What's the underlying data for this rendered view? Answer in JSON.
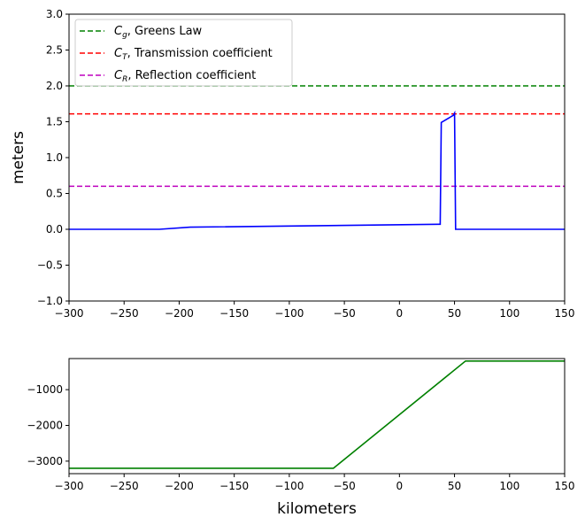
{
  "chart_data": [
    {
      "type": "line",
      "title": "",
      "xlabel": "",
      "ylabel": "meters",
      "xlim": [
        -300,
        150
      ],
      "ylim": [
        -1.0,
        3.0
      ],
      "xticks": [
        "−300",
        "−250",
        "−200",
        "−150",
        "−100",
        "−50",
        "0",
        "50",
        "100",
        "150"
      ],
      "yticks": [
        "−1.0",
        "−0.5",
        "0.0",
        "0.5",
        "1.0",
        "1.5",
        "2.0",
        "2.5",
        "3.0"
      ],
      "grid": false,
      "legend_position": "top-left",
      "legend": [
        {
          "symbol": "C",
          "sub": "g",
          "label": ", Greens Law",
          "color": "#008000",
          "style": "dashed"
        },
        {
          "symbol": "C",
          "sub": "T",
          "label": ", Transmission coefficient",
          "color": "#ff0000",
          "style": "dashed"
        },
        {
          "symbol": "C",
          "sub": "R",
          "label": ", Reflection coefficient",
          "color": "#bf00bf",
          "style": "dashed"
        }
      ],
      "hlines": [
        {
          "y": 2.0,
          "color": "#008000",
          "style": "dashed"
        },
        {
          "y": 1.61,
          "color": "#ff0000",
          "style": "dashed"
        },
        {
          "y": 0.6,
          "color": "#bf00bf",
          "style": "dashed"
        }
      ],
      "series": [
        {
          "color": "#0000ff",
          "x": [
            -300,
            -218,
            -190,
            36,
            37,
            38,
            49,
            50,
            51,
            150
          ],
          "y": [
            0.0,
            0.0,
            0.03,
            0.07,
            0.07,
            1.49,
            1.59,
            1.62,
            0.0,
            0.0
          ]
        }
      ]
    },
    {
      "type": "line",
      "title": "",
      "xlabel": "kilometers",
      "ylabel": "",
      "xlim": [
        -300,
        150
      ],
      "ylim": [
        -3350,
        -130
      ],
      "xticks": [
        "−300",
        "−250",
        "−200",
        "−150",
        "−100",
        "−50",
        "0",
        "50",
        "100",
        "150"
      ],
      "yticks": [
        "−3000",
        "−2000",
        "−1000"
      ],
      "grid": false,
      "series": [
        {
          "color": "#008000",
          "x": [
            -300,
            -60,
            60,
            150
          ],
          "y": [
            -3200,
            -3200,
            -200,
            -200
          ]
        }
      ]
    }
  ]
}
